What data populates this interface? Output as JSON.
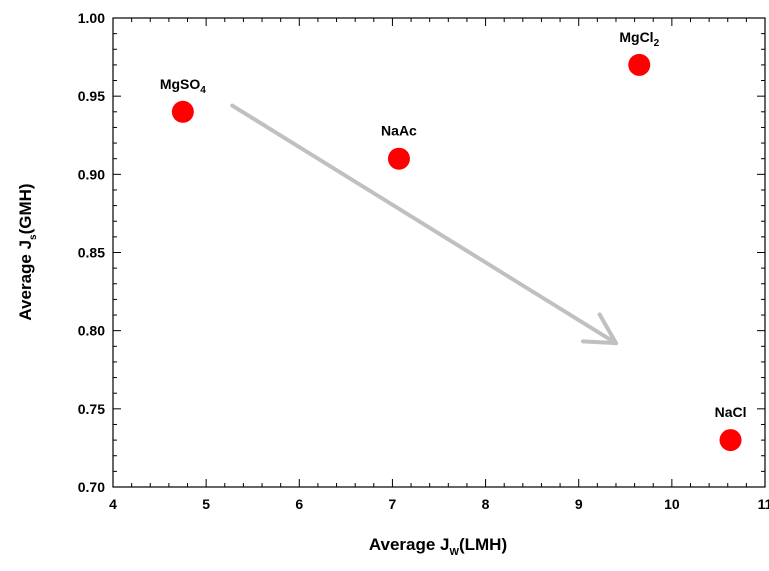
{
  "chart_data": {
    "type": "scatter",
    "xlabel": {
      "main": "Average J",
      "sub": "W",
      "rest": "(LMH)"
    },
    "ylabel": {
      "main": "Average J",
      "sub": "s",
      "rest": "(GMH)"
    },
    "xlim": [
      4,
      11
    ],
    "ylim": [
      0.7,
      1.0
    ],
    "x_ticks": [
      4,
      5,
      6,
      7,
      8,
      9,
      10,
      11
    ],
    "x_tick_labels": [
      "4",
      "5",
      "6",
      "7",
      "8",
      "9",
      "10",
      "11"
    ],
    "y_ticks": [
      0.7,
      0.75,
      0.8,
      0.85,
      0.9,
      0.95,
      1.0
    ],
    "y_tick_labels": [
      "0.70",
      "0.75",
      "0.80",
      "0.85",
      "0.90",
      "0.95",
      "1.00"
    ],
    "grid": false,
    "points": [
      {
        "label": "MgSO",
        "sub": "4",
        "x": 4.75,
        "y": 0.94
      },
      {
        "label": "NaAc",
        "sub": "",
        "x": 7.07,
        "y": 0.91
      },
      {
        "label": "MgCl",
        "sub": "2",
        "x": 9.65,
        "y": 0.97
      },
      {
        "label": "NaCl",
        "sub": "",
        "x": 10.63,
        "y": 0.73
      }
    ],
    "trend_arrow": {
      "from": [
        5.28,
        0.944
      ],
      "to": [
        9.4,
        0.792
      ]
    },
    "colors": {
      "marker": "#ff0000",
      "arrow": "#c0c0c0",
      "axis": "#000000"
    }
  }
}
